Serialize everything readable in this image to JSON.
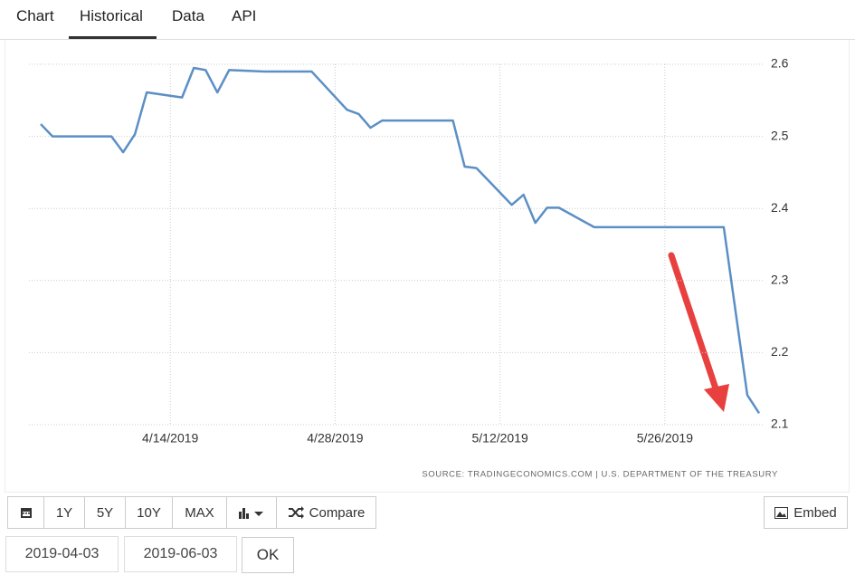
{
  "tabs": [
    "Chart",
    "Historical",
    "Data",
    "API"
  ],
  "chart_data": {
    "type": "line",
    "x": [
      "4/3/2019",
      "4/4/2019",
      "4/5/2019",
      "4/8/2019",
      "4/9/2019",
      "4/10/2019",
      "4/11/2019",
      "4/12/2019",
      "4/15/2019",
      "4/16/2019",
      "4/17/2019",
      "4/18/2019",
      "4/19/2019",
      "4/22/2019",
      "4/23/2019",
      "4/24/2019",
      "4/25/2019",
      "4/26/2019",
      "4/29/2019",
      "4/30/2019",
      "5/1/2019",
      "5/2/2019",
      "5/3/2019",
      "5/6/2019",
      "5/7/2019",
      "5/8/2019",
      "5/9/2019",
      "5/10/2019",
      "5/13/2019",
      "5/14/2019",
      "5/15/2019",
      "5/16/2019",
      "5/17/2019",
      "5/20/2019",
      "5/21/2019",
      "5/22/2019",
      "5/23/2019",
      "5/24/2019",
      "5/28/2019",
      "5/29/2019",
      "5/30/2019",
      "5/31/2019",
      "6/2/2019",
      "6/3/2019"
    ],
    "values": [
      2.517,
      2.5,
      2.5,
      2.5,
      2.5,
      2.478,
      2.503,
      2.561,
      2.554,
      2.595,
      2.592,
      2.561,
      2.592,
      2.59,
      2.59,
      2.59,
      2.59,
      2.59,
      2.537,
      2.531,
      2.512,
      2.522,
      2.522,
      2.522,
      2.522,
      2.522,
      2.458,
      2.456,
      2.405,
      2.419,
      2.38,
      2.401,
      2.401,
      2.374,
      2.374,
      2.374,
      2.374,
      2.374,
      2.374,
      2.374,
      2.374,
      2.374,
      2.141,
      2.116
    ],
    "color": "#5b8fc5",
    "xlim": [
      "4/2/2019",
      "6/3/2019"
    ],
    "xticks": [
      "4/14/2019",
      "4/28/2019",
      "5/12/2019",
      "5/26/2019"
    ],
    "ylim": [
      2.1,
      2.6
    ],
    "yticks": [
      2.1,
      2.2,
      2.3,
      2.4,
      2.5,
      2.6
    ],
    "grid": true,
    "source": "SOURCE: TRADINGECONOMICS.COM | U.S. DEPARTMENT OF THE TREASURY"
  },
  "controls": {
    "ranges": [
      "1Y",
      "5Y",
      "10Y",
      "MAX"
    ],
    "compare": "Compare",
    "embed": "Embed",
    "start_date": "2019-04-03",
    "end_date": "2019-06-03",
    "ok": "OK"
  }
}
